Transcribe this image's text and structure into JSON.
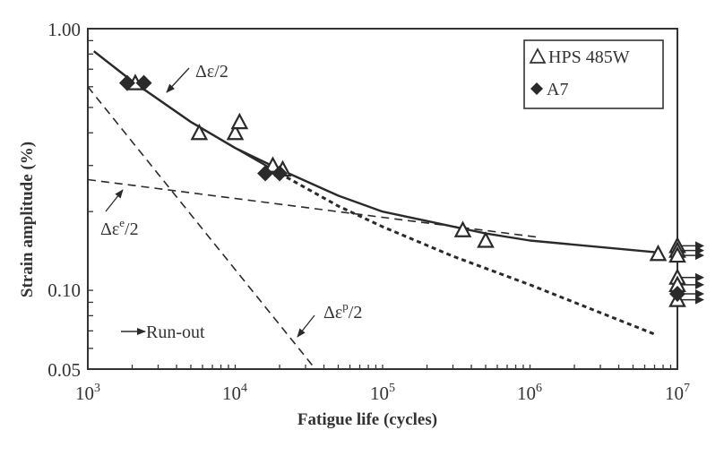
{
  "chart_data": {
    "type": "scatter",
    "title": "",
    "xlabel": "Fatigue life (cycles)",
    "ylabel": "Strain amplitude (%)",
    "xscale": "log",
    "yscale": "log",
    "xlim": [
      1000,
      10000000
    ],
    "ylim": [
      0.05,
      1.0
    ],
    "x_ticks": [
      {
        "value": 1000,
        "base": "10",
        "exp": "3"
      },
      {
        "value": 10000,
        "base": "10",
        "exp": "4"
      },
      {
        "value": 100000,
        "base": "10",
        "exp": "5"
      },
      {
        "value": 1000000,
        "base": "10",
        "exp": "6"
      },
      {
        "value": 10000000,
        "base": "10",
        "exp": "7"
      }
    ],
    "y_ticks": [
      {
        "value": 1.0,
        "label": "1.00"
      },
      {
        "value": 0.1,
        "label": "0.10"
      },
      {
        "value": 0.05,
        "label": "0.05"
      }
    ],
    "grid": false,
    "legend": {
      "position": "upper right",
      "entries": [
        {
          "marker": "open-triangle",
          "symbol": "△",
          "label": "HPS 485W"
        },
        {
          "marker": "filled-diamond",
          "symbol": "◆",
          "label": "A7"
        }
      ]
    },
    "series": [
      {
        "name": "HPS 485W",
        "marker": "open-triangle",
        "points": [
          {
            "x": 2100,
            "y": 0.62
          },
          {
            "x": 5700,
            "y": 0.4
          },
          {
            "x": 10000,
            "y": 0.4
          },
          {
            "x": 10700,
            "y": 0.44
          },
          {
            "x": 18000,
            "y": 0.3
          },
          {
            "x": 21000,
            "y": 0.29
          },
          {
            "x": 350000,
            "y": 0.17
          },
          {
            "x": 500000,
            "y": 0.155
          },
          {
            "x": 7400000,
            "y": 0.138
          }
        ],
        "runouts": [
          {
            "x": 10000000,
            "y": 0.148
          },
          {
            "x": 10000000,
            "y": 0.142
          },
          {
            "x": 10000000,
            "y": 0.136
          },
          {
            "x": 10000000,
            "y": 0.112
          },
          {
            "x": 10000000,
            "y": 0.105
          },
          {
            "x": 10000000,
            "y": 0.092
          }
        ]
      },
      {
        "name": "A7",
        "marker": "filled-diamond",
        "points": [
          {
            "x": 1850,
            "y": 0.62
          },
          {
            "x": 2400,
            "y": 0.62
          },
          {
            "x": 16000,
            "y": 0.28
          },
          {
            "x": 20000,
            "y": 0.28
          }
        ],
        "runouts": [
          {
            "x": 10000000,
            "y": 0.097
          }
        ]
      }
    ],
    "curves": [
      {
        "name": "total strain fit HPS 485W",
        "style": "solid",
        "x": [
          1100,
          2000,
          5000,
          10000,
          20000,
          50000,
          100000,
          500000,
          1000000,
          7000000
        ],
        "y": [
          0.82,
          0.63,
          0.44,
          0.35,
          0.29,
          0.23,
          0.2,
          0.165,
          0.155,
          0.14
        ]
      },
      {
        "name": "total strain fit A7",
        "style": "solid",
        "x": [
          1100,
          2000,
          5000,
          10000,
          20000,
          50000,
          100000,
          300000,
          1000000,
          7000000
        ],
        "y": [
          0.82,
          0.63,
          0.44,
          0.35,
          0.28,
          0.21,
          0.175,
          0.135,
          0.105,
          0.068
        ]
      },
      {
        "name": "elastic strain",
        "style": "dashed",
        "x": [
          1000,
          1100000
        ],
        "y": [
          0.265,
          0.16
        ]
      },
      {
        "name": "plastic strain",
        "style": "dashed",
        "x": [
          1000,
          35000
        ],
        "y": [
          0.6,
          0.05
        ]
      }
    ],
    "annotations": [
      {
        "text_main": "Δε/2",
        "sup": "",
        "tail": "",
        "target": "total strain curve"
      },
      {
        "text_main": "Δε",
        "sup": "e",
        "tail": "/2",
        "target": "elastic line"
      },
      {
        "text_main": "Δε",
        "sup": "p",
        "tail": "/2",
        "target": "plastic line"
      },
      {
        "text_main": "Run-out",
        "sup": "",
        "tail": "",
        "target": "run-out arrow legend"
      }
    ]
  },
  "labels": {
    "xlabel": "Fatigue life (cycles)",
    "ylabel": "Strain amplitude (%)",
    "legend_hps": "HPS 485W",
    "legend_a7": "A7",
    "annot_total": "Δε/2",
    "annot_elastic_main": "Δε",
    "annot_elastic_sup": "e",
    "annot_elastic_tail": "/2",
    "annot_plastic_main": "Δε",
    "annot_plastic_sup": "p",
    "annot_plastic_tail": "/2",
    "runout": "Run-out",
    "y_tick_1": "1.00",
    "y_tick_010": "0.10",
    "y_tick_005": "0.05",
    "x_base": "10",
    "x_exp_3": "3",
    "x_exp_4": "4",
    "x_exp_5": "5",
    "x_exp_6": "6",
    "x_exp_7": "7"
  },
  "colors": {
    "ink": "#2a2a2a",
    "background": "#ffffff"
  }
}
